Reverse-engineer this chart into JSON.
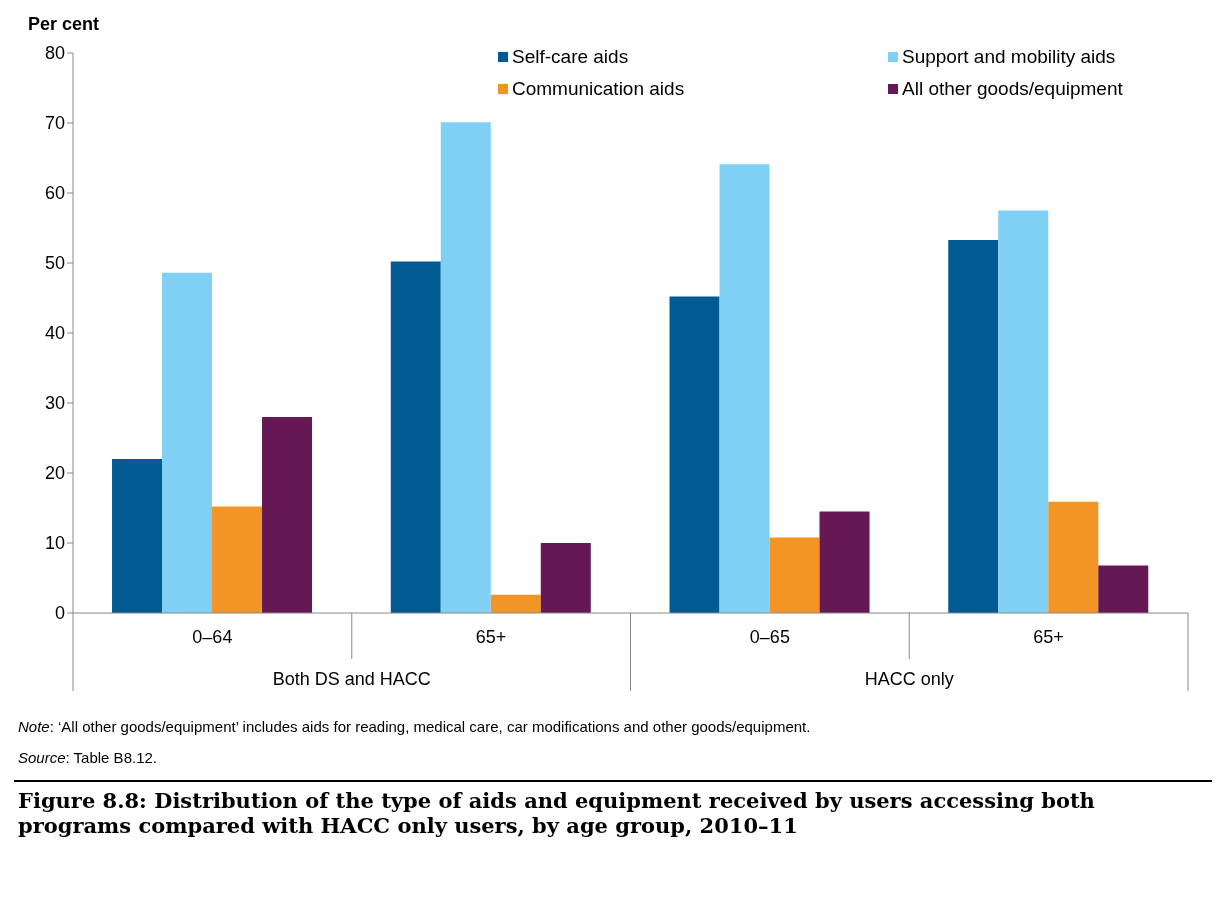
{
  "chart_data": {
    "type": "bar",
    "title": "Figure 8.8: Distribution of the type of aids and equipment received by users accessing both programs compared with HACC only users, by age group, 2010–11",
    "ylabel": "Per cent",
    "categories": [
      "0–64",
      "65+",
      "0–65",
      "65+"
    ],
    "series": [
      {
        "name": "Self-care aids",
        "color": "#005b93",
        "values": [
          22,
          50.2,
          45.2,
          53.3
        ]
      },
      {
        "name": "Support and mobility aids",
        "color": "#80cff5",
        "values": [
          48.6,
          70.1,
          64.1,
          57.5
        ]
      },
      {
        "name": "Communication aids",
        "color": "#f39426",
        "values": [
          15.2,
          2.6,
          10.8,
          15.9
        ]
      },
      {
        "name": "All other goods/equipment",
        "color": "#651854",
        "values": [
          28,
          10,
          14.5,
          6.8
        ]
      }
    ],
    "ylim": [
      0,
      80
    ],
    "yticks": [
      0,
      10,
      20,
      30,
      40,
      50,
      60,
      70,
      80
    ],
    "grid": false,
    "legend": "top right",
    "annotations": [
      "Both DS and HACC",
      "HACC only",
      "Note: ‘All other goods/equipment’ includes aids for reading, medical care, car modifications and other goods/equipment.",
      "Source: Table B8.12."
    ]
  }
}
